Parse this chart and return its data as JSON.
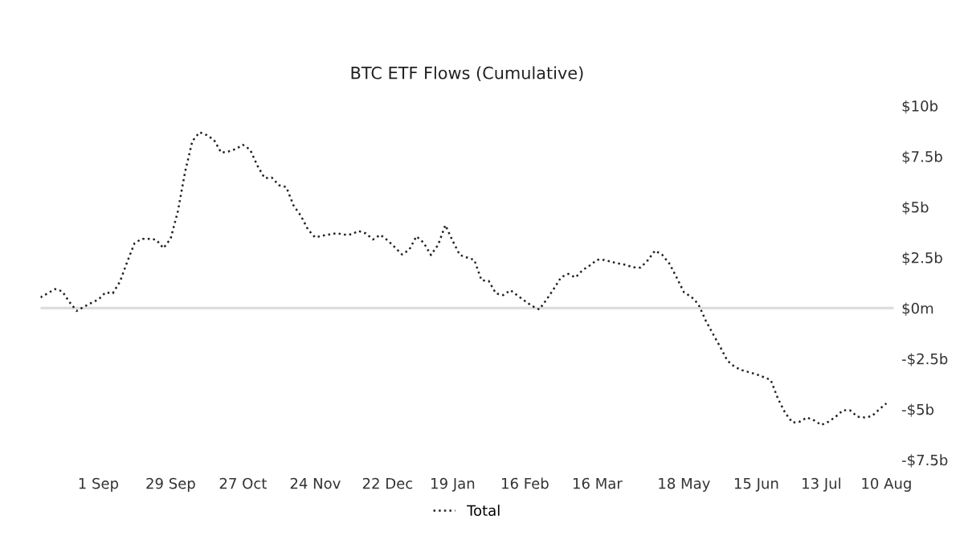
{
  "chart_data": {
    "type": "line",
    "title": "BTC ETF Flows (Cumulative)",
    "categories": [
      null,
      null,
      null,
      null,
      null,
      null,
      null,
      null,
      "1 Sep",
      null,
      null,
      null,
      null,
      null,
      null,
      null,
      null,
      null,
      "29 Sep",
      null,
      null,
      null,
      null,
      null,
      null,
      null,
      null,
      null,
      "27 Oct",
      null,
      null,
      null,
      null,
      null,
      null,
      null,
      null,
      null,
      "24 Nov",
      null,
      null,
      null,
      null,
      null,
      null,
      null,
      null,
      null,
      "22 Dec",
      null,
      null,
      null,
      null,
      null,
      null,
      null,
      null,
      "19 Jan",
      null,
      null,
      null,
      null,
      null,
      null,
      null,
      null,
      null,
      "16 Feb",
      null,
      null,
      null,
      null,
      null,
      null,
      null,
      null,
      null,
      "16 Mar",
      null,
      null,
      null,
      null,
      null,
      null,
      null,
      null,
      null,
      null,
      null,
      "18 May",
      null,
      null,
      null,
      null,
      null,
      null,
      null,
      null,
      null,
      "15 Jun",
      null,
      null,
      null,
      null,
      null,
      null,
      null,
      null,
      "13 Jul",
      null,
      null,
      null,
      null,
      null,
      null,
      null,
      null,
      "10 Aug"
    ],
    "series": [
      {
        "name": "Total",
        "color": "#222222",
        "values": [
          0.53,
          0.73,
          0.94,
          0.83,
          0.3,
          -0.14,
          0.06,
          0.25,
          0.42,
          0.77,
          0.73,
          1.31,
          2.29,
          3.2,
          3.42,
          3.42,
          3.38,
          2.96,
          3.43,
          4.78,
          6.73,
          8.25,
          8.69,
          8.55,
          8.31,
          7.68,
          7.74,
          7.86,
          8.07,
          7.83,
          7.04,
          6.42,
          6.45,
          6.07,
          5.98,
          5.07,
          4.57,
          3.88,
          3.49,
          3.58,
          3.64,
          3.7,
          3.63,
          3.64,
          3.81,
          3.69,
          3.39,
          3.62,
          3.35,
          3.01,
          2.65,
          2.88,
          3.55,
          3.23,
          2.62,
          3.13,
          4.1,
          3.33,
          2.62,
          2.5,
          2.38,
          1.37,
          1.34,
          0.72,
          0.64,
          0.88,
          0.61,
          0.35,
          0.1,
          -0.07,
          0.42,
          0.95,
          1.52,
          1.69,
          1.51,
          1.88,
          2.11,
          2.39,
          2.38,
          2.28,
          2.2,
          2.13,
          2.01,
          2.0,
          2.36,
          2.84,
          2.63,
          2.19,
          1.5,
          0.78,
          0.56,
          0.19,
          -0.61,
          -1.27,
          -1.91,
          -2.6,
          -2.9,
          -3.07,
          -3.17,
          -3.27,
          -3.41,
          -3.55,
          -4.48,
          -5.18,
          -5.66,
          -5.62,
          -5.41,
          -5.55,
          -5.78,
          -5.62,
          -5.37,
          -5.05,
          -5.06,
          -5.37,
          -5.41,
          -5.34,
          -5.01,
          -4.71
        ]
      }
    ],
    "ylim": [
      -7.5,
      10
    ],
    "yticks": [
      {
        "value": -7.5,
        "label": "-$7.5b"
      },
      {
        "value": -5,
        "label": "-$5b"
      },
      {
        "value": -2.5,
        "label": "-$2.5b"
      },
      {
        "value": 0,
        "label": "$0m"
      },
      {
        "value": 2.5,
        "label": "$2.5b"
      },
      {
        "value": 5,
        "label": "$5b"
      },
      {
        "value": 7.5,
        "label": "$7.5b"
      },
      {
        "value": 10,
        "label": "$10b"
      }
    ],
    "ref_lines": [
      {
        "axis": "y",
        "value": 0,
        "color": "#dddddd"
      }
    ],
    "line_style": "dotted",
    "marker": "none",
    "grid": false,
    "legend": "bottom"
  }
}
